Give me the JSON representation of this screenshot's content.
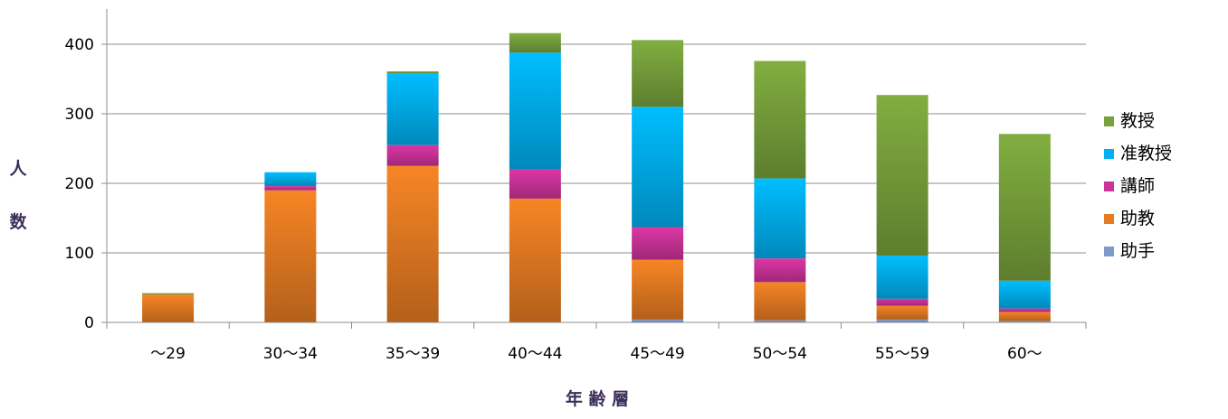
{
  "chart_data": {
    "type": "bar",
    "stacked": true,
    "categories": [
      "～29",
      "30～34",
      "35～39",
      "40～44",
      "45～49",
      "50～54",
      "55～59",
      "60～"
    ],
    "series": [
      {
        "name": "助手",
        "color": "#7f99c9",
        "values": [
          0,
          0,
          0,
          0,
          4,
          3,
          4,
          2
        ]
      },
      {
        "name": "助教",
        "color": "#e57b22",
        "values": [
          40,
          190,
          225,
          178,
          86,
          55,
          20,
          13
        ]
      },
      {
        "name": "講師",
        "color": "#cc3399",
        "values": [
          0,
          6,
          30,
          42,
          47,
          34,
          10,
          5
        ]
      },
      {
        "name": "准教授",
        "color": "#00b0f0",
        "values": [
          0,
          20,
          103,
          168,
          173,
          115,
          62,
          40
        ]
      },
      {
        "name": "教授",
        "color": "#77a13b",
        "values": [
          2,
          0,
          3,
          28,
          96,
          169,
          231,
          211
        ]
      }
    ],
    "legend_order": [
      "教授",
      "准教授",
      "講師",
      "助教",
      "助手"
    ],
    "legend_position": "right",
    "ylim": [
      0,
      450
    ],
    "yticks": [
      0,
      100,
      200,
      300,
      400
    ],
    "ylabel_chars": [
      "人",
      "数"
    ],
    "xlabel": "年 齢 層",
    "grid": true
  }
}
